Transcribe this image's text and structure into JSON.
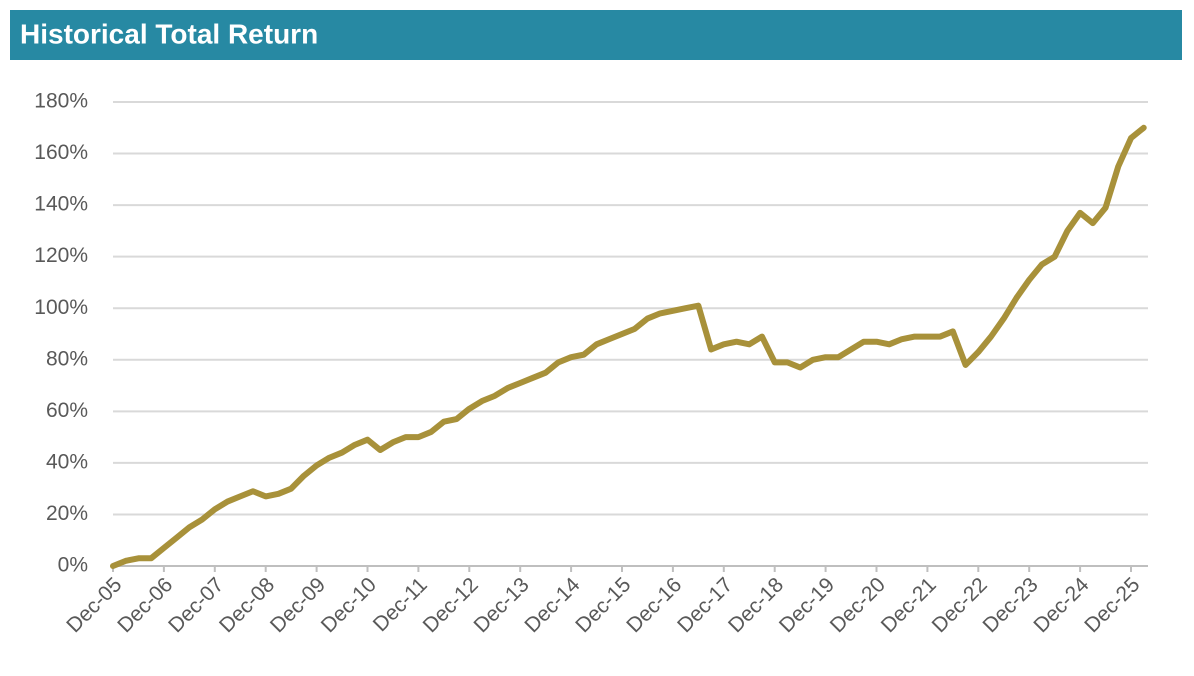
{
  "chart_data": {
    "type": "line",
    "title": "Historical Total Return",
    "categories": [
      "Dec-05",
      null,
      null,
      null,
      "Dec-06",
      null,
      null,
      null,
      "Dec-07",
      null,
      null,
      null,
      "Dec-08",
      null,
      null,
      null,
      "Dec-09",
      null,
      null,
      null,
      "Dec-10",
      null,
      null,
      null,
      "Dec-11",
      null,
      null,
      null,
      "Dec-12",
      null,
      null,
      null,
      "Dec-13",
      null,
      null,
      null,
      "Dec-14",
      null,
      null,
      null,
      "Dec-15",
      null,
      null,
      null,
      "Dec-16",
      null,
      null,
      null,
      "Dec-17",
      null,
      null,
      null,
      "Dec-18",
      null,
      null,
      null,
      "Dec-19",
      null,
      null,
      null,
      "Dec-20",
      null,
      null,
      null,
      "Dec-21",
      null,
      null,
      null,
      "Dec-22",
      null,
      null,
      null,
      "Dec-23",
      null,
      null,
      null,
      "Dec-24",
      null,
      null,
      null,
      "Dec-25",
      null
    ],
    "values": [
      0,
      2,
      3,
      3,
      7,
      11,
      15,
      18,
      22,
      25,
      27,
      29,
      27,
      28,
      30,
      35,
      39,
      42,
      44,
      47,
      49,
      45,
      48,
      50,
      50,
      52,
      56,
      57,
      61,
      64,
      66,
      69,
      71,
      73,
      75,
      79,
      81,
      82,
      86,
      88,
      90,
      92,
      96,
      98,
      99,
      100,
      101,
      84,
      86,
      87,
      86,
      89,
      79,
      79,
      77,
      80,
      81,
      81,
      84,
      87,
      87,
      86,
      88,
      89,
      89,
      89,
      91,
      78,
      83,
      89,
      96,
      104,
      111,
      117,
      120,
      130,
      137,
      133,
      139,
      155,
      166,
      170
    ],
    "color": "#a8913a",
    "ylim": [
      0,
      180
    ],
    "yticks": [
      {
        "value": 0,
        "label": "0%"
      },
      {
        "value": 20,
        "label": "20%"
      },
      {
        "value": 40,
        "label": "40%"
      },
      {
        "value": 60,
        "label": "60%"
      },
      {
        "value": 80,
        "label": "80%"
      },
      {
        "value": 100,
        "label": "100%"
      },
      {
        "value": 120,
        "label": "120%"
      },
      {
        "value": 140,
        "label": "140%"
      },
      {
        "value": 160,
        "label": "160%"
      },
      {
        "value": 180,
        "label": "180%"
      }
    ],
    "grid": true
  }
}
